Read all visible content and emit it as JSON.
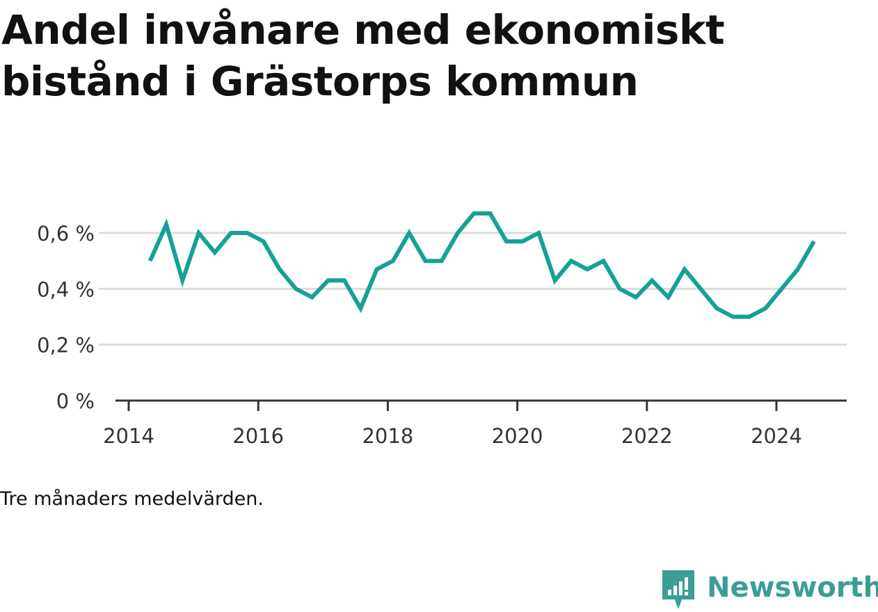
{
  "title": "Andel invånare med ekonomiskt bistånd i Grästorps kommun",
  "note": "Tre månaders medelvärden.",
  "brand": {
    "name": "Newsworthy",
    "color": "#3a9e95"
  },
  "chart_data": {
    "type": "line",
    "title": "Andel invånare med ekonomiskt bistånd i Grästorps kommun",
    "xlabel": "",
    "ylabel": "",
    "ylim": [
      0,
      0.6
    ],
    "xlim": [
      2014.0,
      2025.3
    ],
    "y_ticks": [
      {
        "value": 0,
        "label": "0 %"
      },
      {
        "value": 0.2,
        "label": "0,2 %"
      },
      {
        "value": 0.4,
        "label": "0,4 %"
      },
      {
        "value": 0.6,
        "label": "0,6 %"
      }
    ],
    "x_ticks": [
      {
        "value": 2014,
        "label": "2014"
      },
      {
        "value": 2016,
        "label": "2016"
      },
      {
        "value": 2018,
        "label": "2018"
      },
      {
        "value": 2020,
        "label": "2020"
      },
      {
        "value": 2022,
        "label": "2022"
      },
      {
        "value": 2024,
        "label": "2024"
      }
    ],
    "grid": true,
    "line_color": "#16a196",
    "series": [
      {
        "x": [
          2014.33,
          2014.58,
          2014.83,
          2015.08,
          2015.33,
          2015.58,
          2015.83,
          2016.08,
          2016.33,
          2016.58,
          2016.83,
          2017.08,
          2017.33,
          2017.58,
          2017.83,
          2018.08,
          2018.33,
          2018.58,
          2018.83,
          2019.08,
          2019.33,
          2019.58,
          2019.83,
          2020.08,
          2020.33,
          2020.58,
          2020.83,
          2021.08,
          2021.33,
          2021.58,
          2021.83,
          2022.08,
          2022.33,
          2022.58,
          2022.83,
          2023.08,
          2023.33,
          2023.58,
          2023.83,
          2024.08,
          2024.33,
          2024.58
        ],
        "values": [
          0.5,
          0.63,
          0.43,
          0.6,
          0.53,
          0.6,
          0.6,
          0.57,
          0.47,
          0.4,
          0.37,
          0.43,
          0.43,
          0.33,
          0.47,
          0.5,
          0.6,
          0.5,
          0.5,
          0.6,
          0.67,
          0.67,
          0.57,
          0.57,
          0.6,
          0.43,
          0.5,
          0.47,
          0.5,
          0.4,
          0.37,
          0.43,
          0.37,
          0.47,
          0.4,
          0.33,
          0.3,
          0.3,
          0.33,
          0.4,
          0.47,
          0.57
        ]
      }
    ]
  }
}
